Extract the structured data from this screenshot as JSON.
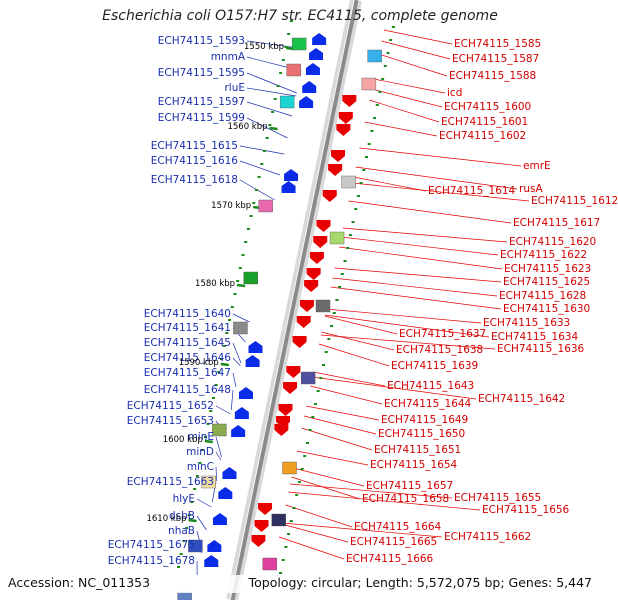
{
  "title": "Escherichia coli O157:H7 str. EC4115, complete genome",
  "footer": {
    "accession": "Accession: NC_011353",
    "summary": "Topology: circular; Length: 5,572,075 bp; Genes: 5,447"
  },
  "colors": {
    "left_labels": "#1a2fb0",
    "right_labels": "#d40000",
    "backbone": "#8a8a8a",
    "forward_genes": "#0a2ce8",
    "reverse_genes": "#e80000",
    "dots": "#1a8a1a"
  },
  "scale_ticks": [
    "1550 kbp",
    "1560 kbp",
    "1570 kbp",
    "1580 kbp",
    "1590 kbp",
    "1600 kbp",
    "1610 kbp"
  ],
  "left_labels": [
    "ECH74115_1593",
    "mnmA",
    "ECH74115_1595",
    "rluE",
    "ECH74115_1597",
    "ECH74115_1599",
    "ECH74115_1615",
    "ECH74115_1616",
    "ECH74115_1618",
    "ECH74115_1640",
    "ECH74115_1641",
    "ECH74115_1645",
    "ECH74115_1646",
    "ECH74115_1647",
    "ECH74115_1648",
    "ECH74115_1652",
    "ECH74115_1653",
    "minE",
    "minD",
    "minC",
    "ECH74115_1663",
    "hlyE",
    "dsbB",
    "nhaB",
    "ECH74115_1675",
    "ECH74115_1678"
  ],
  "right_labels": [
    "ECH74115_1585",
    "ECH74115_1587",
    "ECH74115_1588",
    "icd",
    "ECH74115_1600",
    "ECH74115_1601",
    "ECH74115_1602",
    "emrE",
    "rusA",
    "ECH74115_1614",
    "ECH74115_1612",
    "ECH74115_1617",
    "ECH74115_1620",
    "ECH74115_1622",
    "ECH74115_1623",
    "ECH74115_1625",
    "ECH74115_1628",
    "ECH74115_1630",
    "ECH74115_1633",
    "ECH74115_1637",
    "ECH74115_1634",
    "ECH74115_1636",
    "ECH74115_1638",
    "ECH74115_1639",
    "ECH74115_1643",
    "ECH74115_1644",
    "ECH74115_1642",
    "ECH74115_1649",
    "ECH74115_1650",
    "ECH74115_1651",
    "ECH74115_1654",
    "ECH74115_1657",
    "ECH74115_1658",
    "ECH74115_1655",
    "ECH74115_1656",
    "ECH74115_1664",
    "ECH74115_1662",
    "ECH74115_1665",
    "ECH74115_1666"
  ]
}
